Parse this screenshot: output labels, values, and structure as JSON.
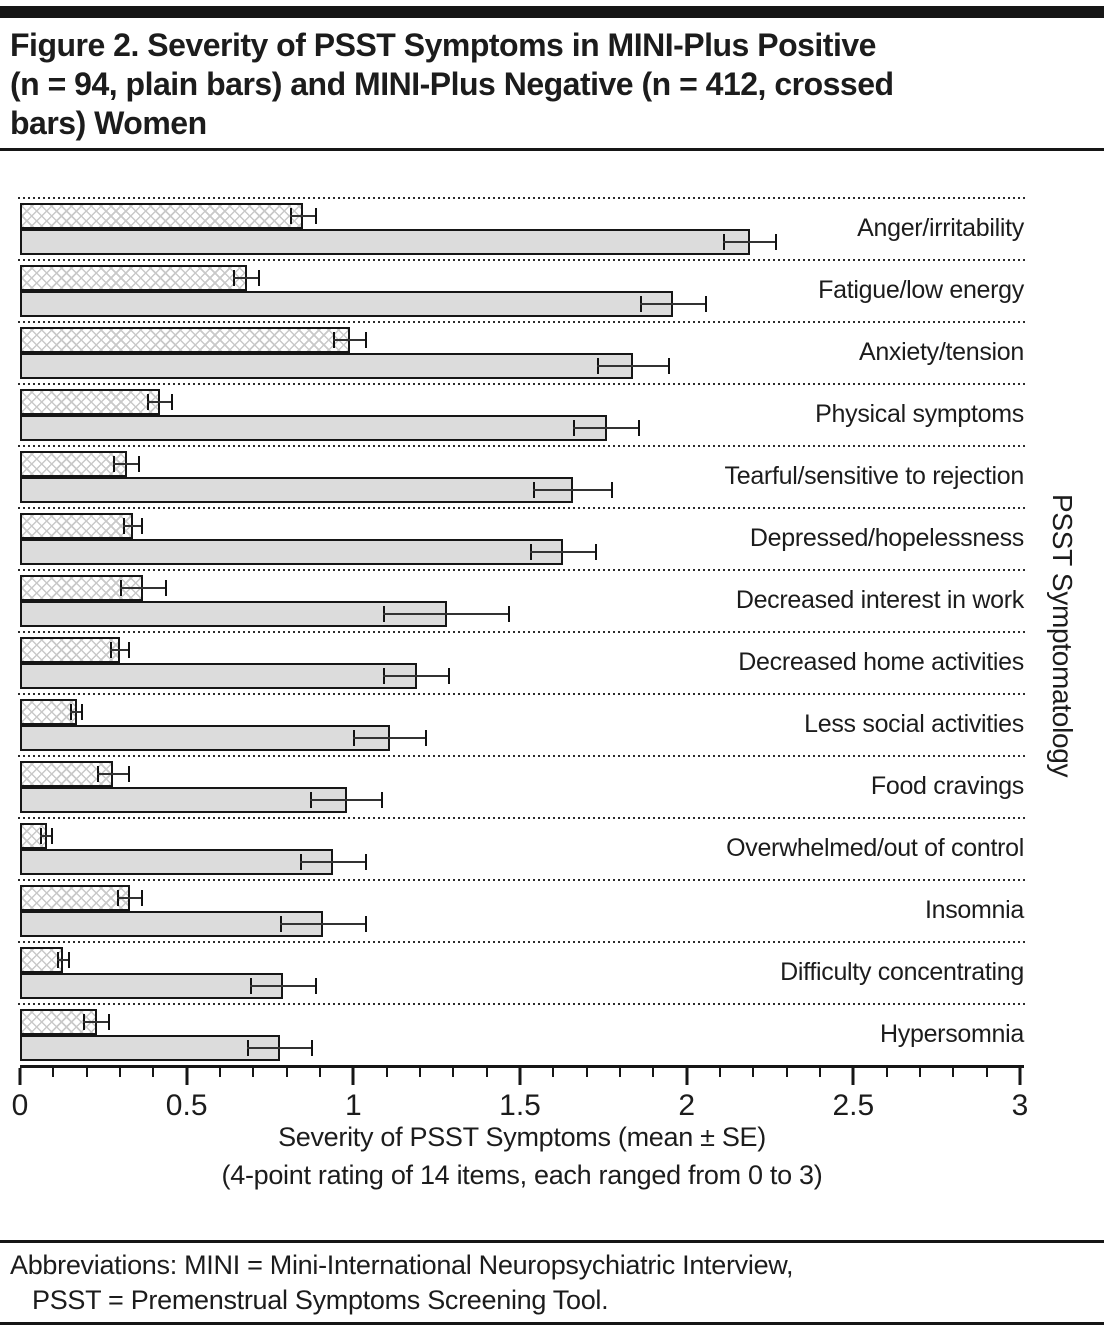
{
  "figure": {
    "title_lines": [
      "Figure 2. Severity of PSST Symptoms in MINI-Plus Positive",
      "(n = 94, plain bars) and MINI-Plus Negative (n = 412, crossed",
      "bars) Women"
    ],
    "footnote_line1": "Abbreviations: MINI = Mini-International Neuropsychiatric Interview,",
    "footnote_line2": "PSST = Premenstrual Symptoms Screening Tool."
  },
  "chart_data": {
    "type": "bar",
    "orientation": "horizontal",
    "title": "Severity of PSST Symptoms in MINI-Plus Positive (n = 94, plain bars) and MINI-Plus Negative (n = 412, crossed bars) Women",
    "xlabel_line1": "Severity of PSST Symptoms (mean ± SE)",
    "xlabel_line2": "(4-point rating of 14 items, each ranged from 0 to 3)",
    "ylabel": "PSST Symptomatology",
    "xlim": [
      0,
      3
    ],
    "x_major_ticks": [
      0,
      0.5,
      1,
      1.5,
      2,
      2.5,
      3
    ],
    "x_tick_labels": [
      "0",
      "0.5",
      "1",
      "1.5",
      "2",
      "2.5",
      "3"
    ],
    "x_minor_step": 0.1,
    "grid": "dotted row separators",
    "legend_position": "none (described in title)",
    "categories": [
      "Anger/irritability",
      "Fatigue/low energy",
      "Anxiety/tension",
      "Physical symptoms",
      "Tearful/sensitive to rejection",
      "Depressed/hopelessness",
      "Decreased interest in work",
      "Decreased home activities",
      "Less social activities",
      "Food cravings",
      "Overwhelmed/out of control",
      "Insomnia",
      "Difficulty concentrating",
      "Hypersomnia"
    ],
    "series": [
      {
        "name": "MINI-Plus Negative (n = 412, crossed bars)",
        "style": "crossed",
        "values": [
          0.85,
          0.68,
          0.99,
          0.42,
          0.32,
          0.34,
          0.37,
          0.3,
          0.17,
          0.28,
          0.08,
          0.33,
          0.13,
          0.23
        ],
        "se": [
          0.04,
          0.04,
          0.05,
          0.04,
          0.04,
          0.03,
          0.07,
          0.03,
          0.02,
          0.05,
          0.02,
          0.04,
          0.02,
          0.04
        ]
      },
      {
        "name": "MINI-Plus Positive (n = 94, plain bars)",
        "style": "plain",
        "values": [
          2.19,
          1.96,
          1.84,
          1.76,
          1.66,
          1.63,
          1.28,
          1.19,
          1.11,
          0.98,
          0.94,
          0.91,
          0.79,
          0.78
        ],
        "se": [
          0.08,
          0.1,
          0.11,
          0.1,
          0.12,
          0.1,
          0.19,
          0.1,
          0.11,
          0.11,
          0.1,
          0.13,
          0.1,
          0.1
        ]
      }
    ],
    "colors": {
      "plain_bar_fill": "#dcdcdc",
      "bar_border": "#161616",
      "hatch_line": "#c9c9c9",
      "error_bar": "#222222",
      "text": "#1c1c1c"
    }
  }
}
